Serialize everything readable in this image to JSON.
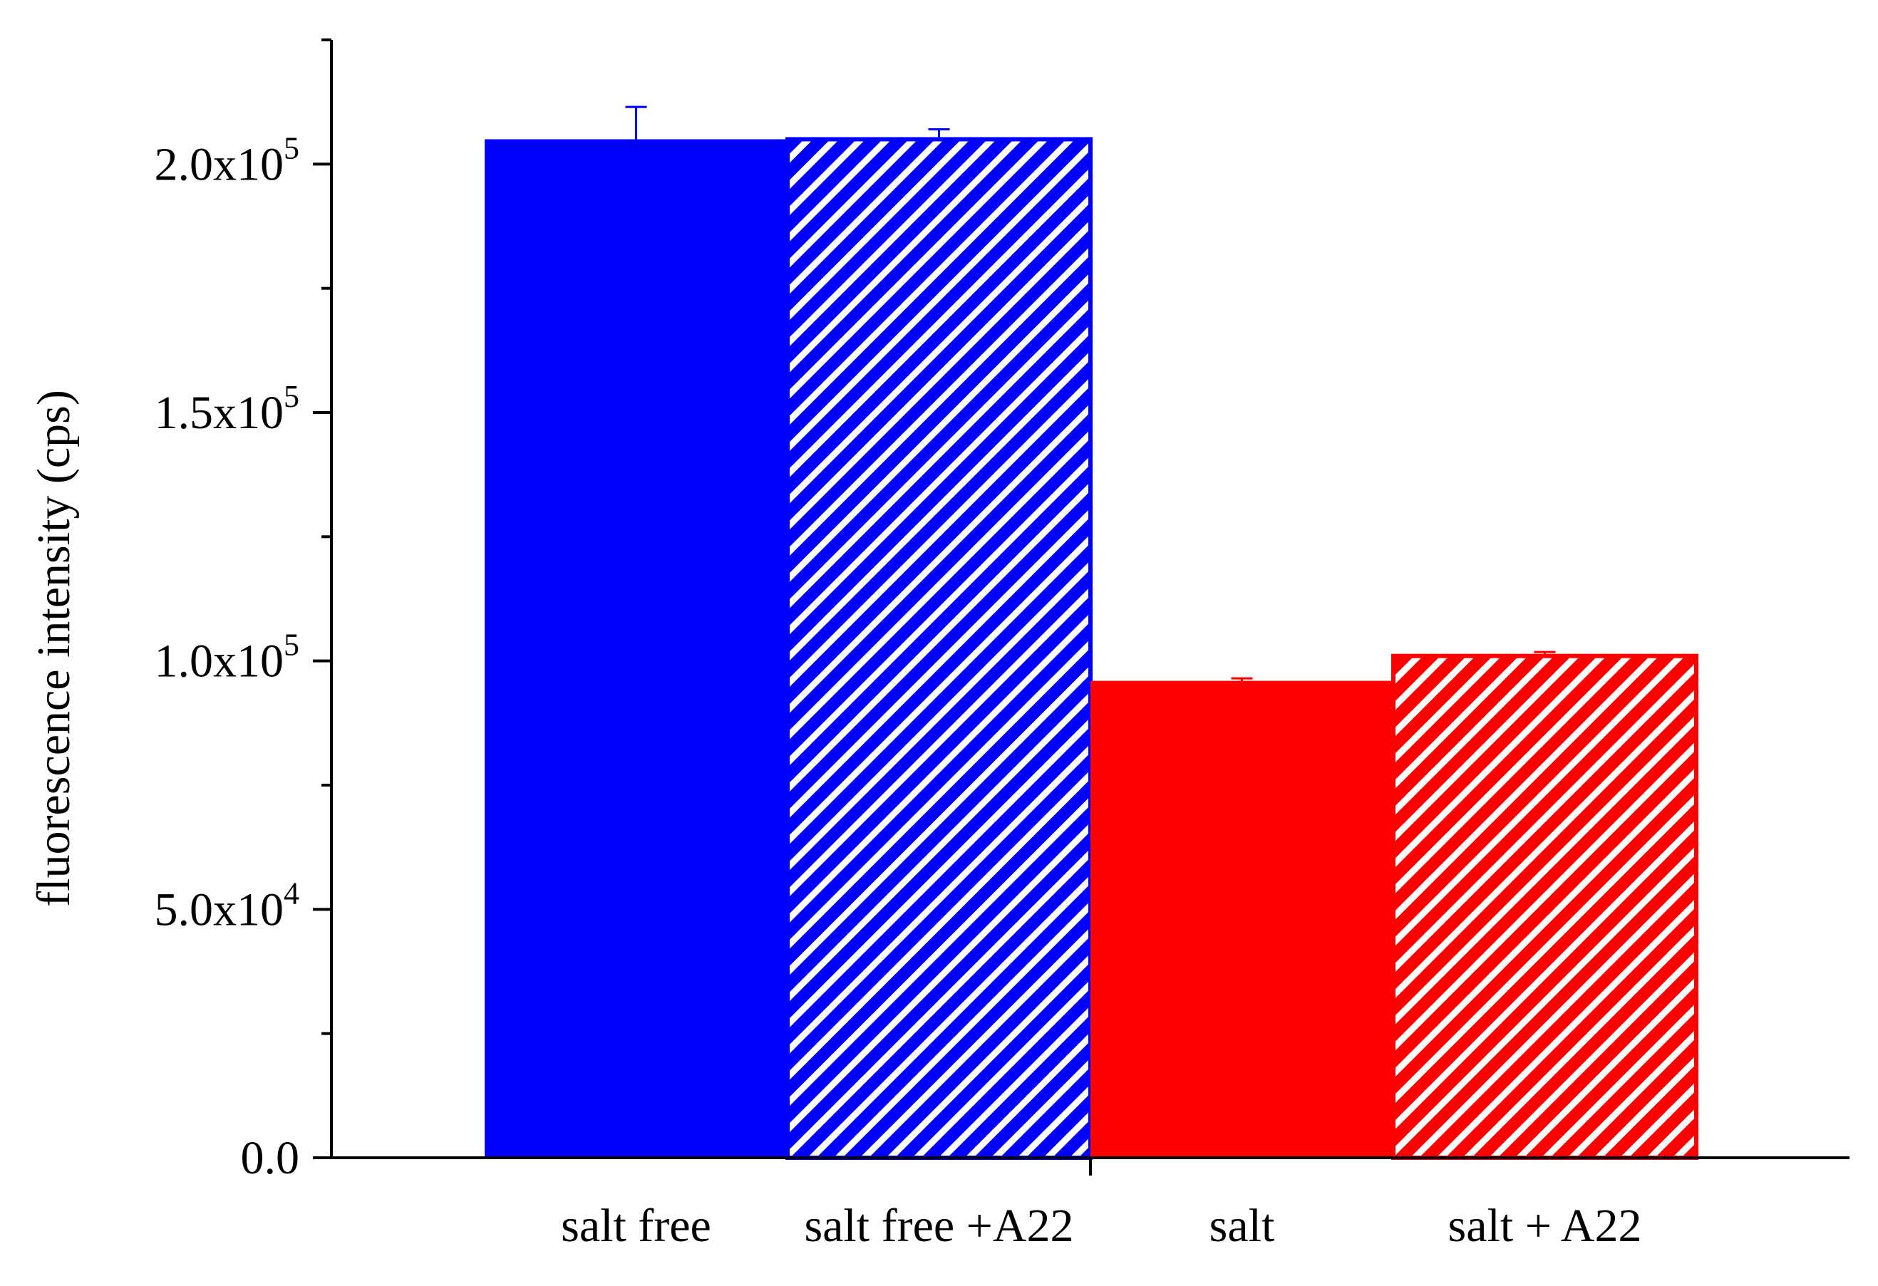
{
  "chart_data": {
    "type": "bar",
    "title": "",
    "xlabel": "",
    "ylabel": "fluorescence intensity (cps)",
    "ylim": [
      0,
      225000
    ],
    "yticks": [
      {
        "value": 0,
        "label": "0.0",
        "exp": ""
      },
      {
        "value": 50000,
        "label": "5.0x10",
        "exp": "4"
      },
      {
        "value": 100000,
        "label": "1.0x10",
        "exp": "5"
      },
      {
        "value": 150000,
        "label": "1.5x10",
        "exp": "5"
      },
      {
        "value": 200000,
        "label": "2.0x10",
        "exp": "5"
      }
    ],
    "categories": [
      "salt free",
      "salt free +A22",
      "salt",
      "salt + A22"
    ],
    "values": [
      205000,
      205000,
      96000,
      101000
    ],
    "errors": [
      6500,
      2000,
      500,
      800
    ],
    "colors": [
      "#0000ff",
      "#0000ff",
      "#ff0000",
      "#ff0000"
    ],
    "hatched": [
      false,
      true,
      false,
      true
    ],
    "grid": false
  }
}
